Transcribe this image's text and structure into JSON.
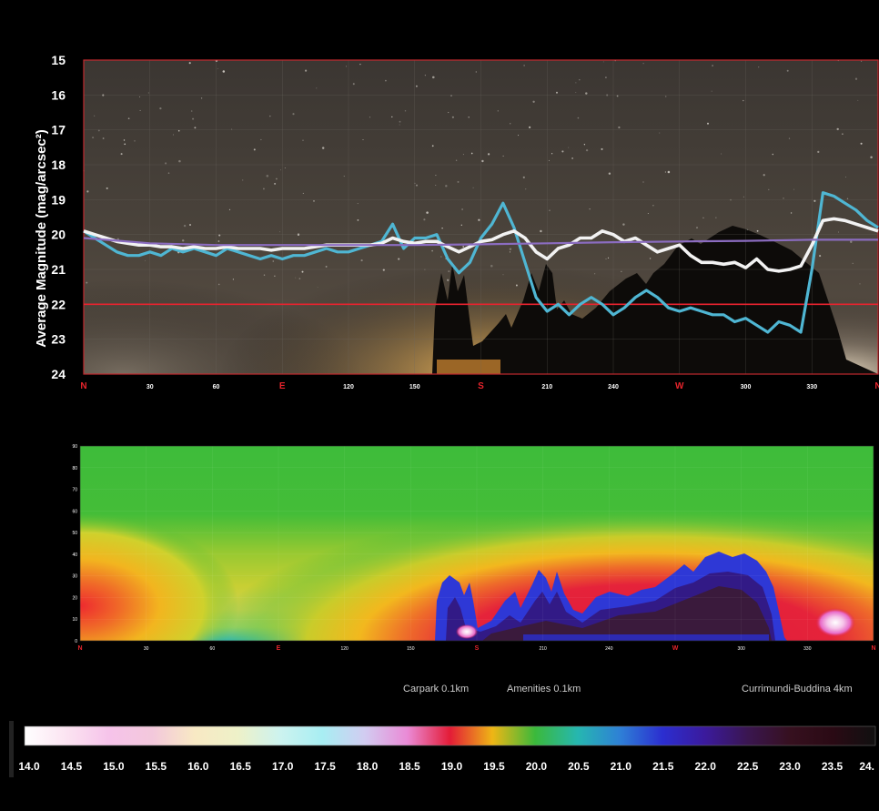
{
  "chart_data": [
    {
      "type": "line",
      "title": "",
      "ylabel": "Average Magnitude (mag/arcsec²)",
      "xlabel": "",
      "ylim": [
        24,
        15
      ],
      "y_ticks": [
        "15",
        "16",
        "17",
        "18",
        "19",
        "20",
        "21",
        "22",
        "23",
        "24"
      ],
      "xlim": [
        0,
        360
      ],
      "x_ticks": [
        {
          "x": 0,
          "label": "N",
          "cardinal": true
        },
        {
          "x": 30,
          "label": "30"
        },
        {
          "x": 60,
          "label": "60"
        },
        {
          "x": 90,
          "label": "E",
          "cardinal": true
        },
        {
          "x": 120,
          "label": "120"
        },
        {
          "x": 150,
          "label": "150"
        },
        {
          "x": 180,
          "label": "S",
          "cardinal": true
        },
        {
          "x": 210,
          "label": "210"
        },
        {
          "x": 240,
          "label": "240"
        },
        {
          "x": 270,
          "label": "W",
          "cardinal": true
        },
        {
          "x": 300,
          "label": "300"
        },
        {
          "x": 330,
          "label": "330"
        },
        {
          "x": 360,
          "label": "N",
          "cardinal": true
        }
      ],
      "reference_line": {
        "y": 22,
        "color": "#e8232f"
      },
      "series": [
        {
          "color": "#4fb6d3",
          "x": [
            0,
            5,
            10,
            15,
            20,
            25,
            30,
            35,
            40,
            45,
            50,
            55,
            60,
            65,
            70,
            75,
            80,
            85,
            90,
            95,
            100,
            105,
            110,
            115,
            120,
            125,
            130,
            135,
            140,
            145,
            150,
            155,
            160,
            165,
            170,
            175,
            180,
            185,
            190,
            195,
            200,
            205,
            210,
            215,
            220,
            225,
            230,
            235,
            240,
            245,
            250,
            255,
            260,
            265,
            270,
            275,
            280,
            285,
            290,
            295,
            300,
            305,
            310,
            315,
            320,
            325,
            330,
            335,
            340,
            345,
            350,
            355,
            360
          ],
          "y": [
            19.9,
            20.1,
            20.3,
            20.5,
            20.6,
            20.6,
            20.5,
            20.6,
            20.4,
            20.5,
            20.4,
            20.5,
            20.6,
            20.4,
            20.5,
            20.6,
            20.7,
            20.6,
            20.7,
            20.6,
            20.6,
            20.5,
            20.4,
            20.5,
            20.5,
            20.4,
            20.3,
            20.2,
            19.7,
            20.4,
            20.1,
            20.1,
            20.0,
            20.7,
            21.1,
            20.8,
            20.1,
            19.7,
            19.1,
            19.8,
            20.8,
            21.8,
            22.2,
            22.0,
            22.3,
            22.0,
            21.8,
            22.0,
            22.3,
            22.1,
            21.8,
            21.6,
            21.8,
            22.1,
            22.2,
            22.1,
            22.2,
            22.3,
            22.3,
            22.5,
            22.4,
            22.6,
            22.8,
            22.5,
            22.6,
            22.8,
            21.0,
            18.8,
            18.9,
            19.1,
            19.3,
            19.6,
            19.8
          ]
        },
        {
          "color": "#f2f2f2",
          "x": [
            0,
            5,
            10,
            15,
            20,
            25,
            30,
            35,
            40,
            45,
            50,
            55,
            60,
            65,
            70,
            75,
            80,
            85,
            90,
            95,
            100,
            105,
            110,
            115,
            120,
            125,
            130,
            135,
            140,
            145,
            150,
            155,
            160,
            165,
            170,
            175,
            180,
            185,
            190,
            195,
            200,
            205,
            210,
            215,
            220,
            225,
            230,
            235,
            240,
            245,
            250,
            255,
            260,
            265,
            270,
            275,
            280,
            285,
            290,
            295,
            300,
            305,
            310,
            315,
            320,
            325,
            330,
            335,
            340,
            345,
            350,
            355,
            360
          ],
          "y": [
            19.9,
            20.0,
            20.1,
            20.2,
            20.25,
            20.3,
            20.3,
            20.35,
            20.35,
            20.4,
            20.35,
            20.4,
            20.4,
            20.35,
            20.4,
            20.4,
            20.4,
            20.45,
            20.4,
            20.4,
            20.4,
            20.35,
            20.3,
            20.3,
            20.3,
            20.3,
            20.3,
            20.25,
            20.1,
            20.2,
            20.25,
            20.2,
            20.2,
            20.35,
            20.5,
            20.35,
            20.2,
            20.15,
            20.0,
            19.9,
            20.1,
            20.5,
            20.7,
            20.4,
            20.3,
            20.1,
            20.1,
            19.9,
            20.0,
            20.2,
            20.1,
            20.3,
            20.5,
            20.4,
            20.3,
            20.6,
            20.8,
            20.8,
            20.85,
            20.8,
            20.95,
            20.7,
            21.0,
            21.05,
            21.0,
            20.9,
            20.3,
            19.6,
            19.55,
            19.6,
            19.7,
            19.8,
            19.9
          ]
        },
        {
          "color": "#8b6cc0",
          "x": [
            0,
            30,
            60,
            90,
            120,
            150,
            180,
            210,
            240,
            270,
            300,
            330,
            360
          ],
          "y": [
            20.1,
            20.25,
            20.3,
            20.3,
            20.3,
            20.3,
            20.28,
            20.25,
            20.22,
            20.2,
            20.18,
            20.15,
            20.15
          ]
        }
      ]
    },
    {
      "type": "heatmap",
      "xlim": [
        0,
        360
      ],
      "ylim": [
        0,
        90
      ],
      "y_ticks": [
        "0",
        "10",
        "20",
        "30",
        "40",
        "50",
        "60",
        "70",
        "80",
        "90"
      ],
      "x_ticks": [
        {
          "x": 0,
          "label": "N",
          "cardinal": true
        },
        {
          "x": 30,
          "label": "30"
        },
        {
          "x": 60,
          "label": "60"
        },
        {
          "x": 90,
          "label": "E",
          "cardinal": true
        },
        {
          "x": 120,
          "label": "120"
        },
        {
          "x": 150,
          "label": "150"
        },
        {
          "x": 180,
          "label": "S",
          "cardinal": true
        },
        {
          "x": 210,
          "label": "210"
        },
        {
          "x": 240,
          "label": "240"
        },
        {
          "x": 270,
          "label": "W",
          "cardinal": true
        },
        {
          "x": 300,
          "label": "300"
        },
        {
          "x": 330,
          "label": "330"
        },
        {
          "x": 360,
          "label": "N",
          "cardinal": true
        }
      ],
      "annotations": [
        "Carpark  0.1km",
        "Amenities 0.1km",
        "Currimundi-Buddina 4km"
      ],
      "colorbar": {
        "ticks": [
          "14.0",
          "14.5",
          "15.0",
          "15.5",
          "16.0",
          "16.5",
          "17.0",
          "17.5",
          "18.0",
          "18.5",
          "19.0",
          "19.5",
          "20.0",
          "20.5",
          "21.0",
          "21.5",
          "22.0",
          "22.5",
          "23.0",
          "23.5",
          "24."
        ],
        "colors": [
          "#ffffff",
          "#fbe3f1",
          "#f6c3ea",
          "#f3c8dc",
          "#f8e9c4",
          "#eef1c8",
          "#cdf3ef",
          "#a8eef3",
          "#d2ccf1",
          "#ea8ad6",
          "#e31c37",
          "#eeb615",
          "#3bb93b",
          "#26b7b0",
          "#2e80d6",
          "#2b2ed0",
          "#3b1a9c",
          "#3a1650",
          "#36101f",
          "#2a0a14",
          "#101010"
        ]
      }
    }
  ]
}
